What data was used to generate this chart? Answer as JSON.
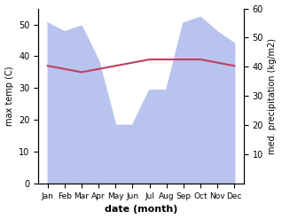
{
  "months": [
    "Jan",
    "Feb",
    "Mar",
    "Apr",
    "May",
    "Jun",
    "Jul",
    "Aug",
    "Sep",
    "Oct",
    "Nov",
    "Dec"
  ],
  "max_temp": [
    37,
    36,
    35,
    36,
    37,
    38,
    39,
    39,
    39,
    39,
    38,
    37
  ],
  "precipitation": [
    55,
    52,
    54,
    42,
    20,
    20,
    32,
    32,
    55,
    57,
    52,
    48
  ],
  "temp_color": "#c04060",
  "precip_fill_color": "#b8c4ee",
  "ylabel_left": "max temp (C)",
  "ylabel_right": "med. precipitation (kg/m2)",
  "xlabel": "date (month)",
  "ylim_left": [
    0,
    55
  ],
  "ylim_right": [
    0,
    60
  ],
  "yticks_left": [
    0,
    10,
    20,
    30,
    40,
    50
  ],
  "yticks_right": [
    10,
    20,
    30,
    40,
    50,
    60
  ],
  "background_color": "#ffffff"
}
